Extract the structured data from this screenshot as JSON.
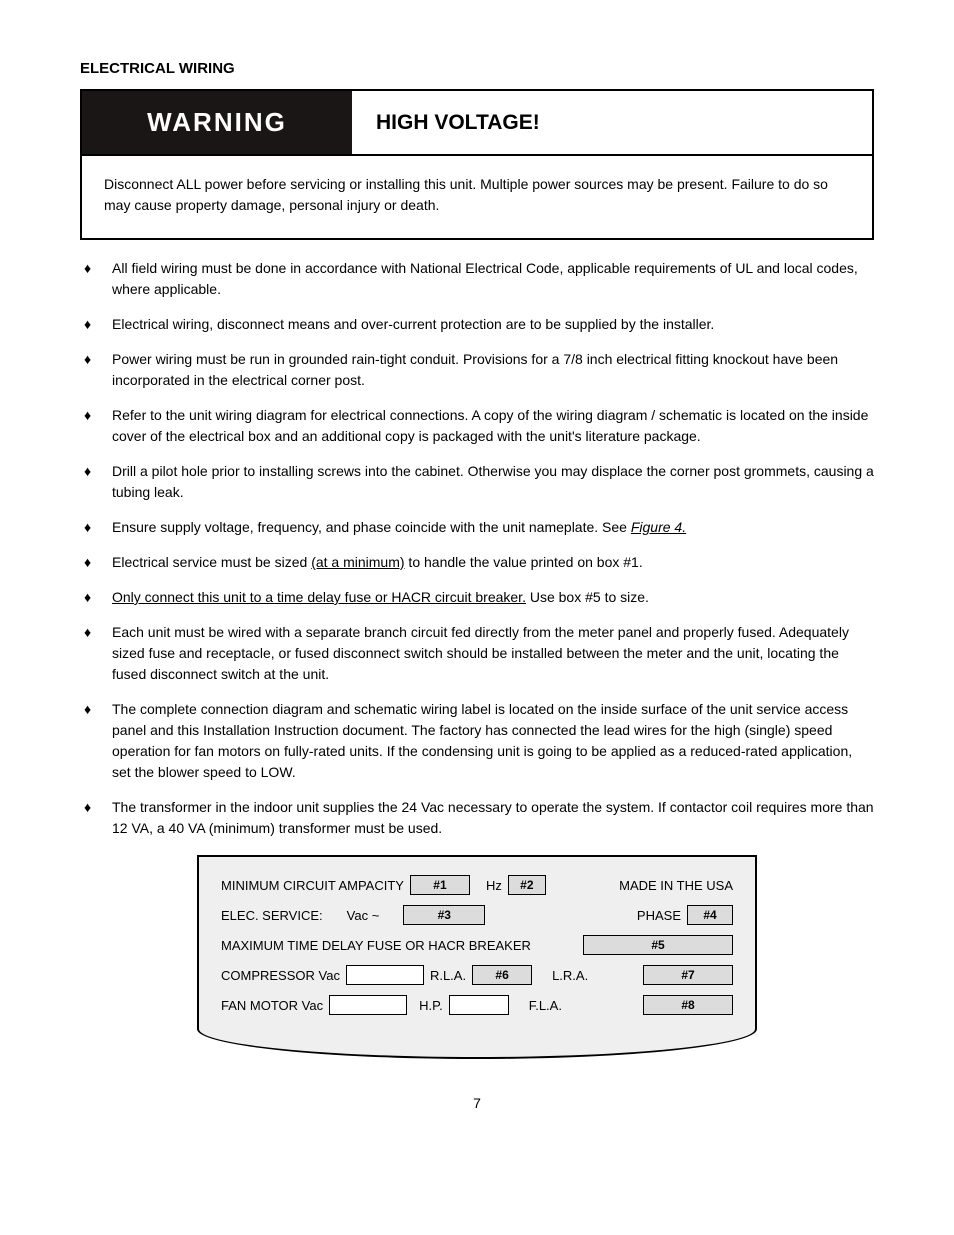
{
  "section_title": "ELECTRICAL WIRING",
  "warning": {
    "label": "WARNING",
    "title": "HIGH VOLTAGE!",
    "body": "Disconnect ALL power before servicing or installing this unit. Multiple power sources may be present. Failure to do so may cause property damage, personal injury or death."
  },
  "bullets": [
    {
      "html": "All field wiring must be done in accordance with National Electrical Code, applicable requirements of UL and local codes, where applicable."
    },
    {
      "html": "Electrical wiring, disconnect means and over-current protection are to be supplied by the installer."
    },
    {
      "html": "Power wiring must be run in grounded rain-tight conduit. Provisions for a 7/8 inch electrical fitting knockout have been incorporated in the electrical corner post."
    },
    {
      "html": "Refer to the unit wiring diagram for electrical connections. A copy of the wiring diagram / schematic is located on the inside cover of the electrical box and an additional copy is packaged with the unit's literature package."
    },
    {
      "html": "Drill a pilot hole prior to installing screws into the cabinet. Otherwise you may displace the corner post grommets, causing a tubing leak."
    },
    {
      "html": "Ensure supply voltage, frequency, and phase coincide with the unit nameplate. See <span class=\"italic underline\">Figure 4.</span>"
    },
    {
      "html": "Electrical service must be sized <span class=\"underline\">(at a minimum)</span> to handle the value printed on box #1."
    },
    {
      "html": "<span class=\"underline\">Only connect this unit to a time delay fuse or HACR circuit breaker.</span> Use box #5 to size."
    },
    {
      "html": "Each unit must be wired with a separate branch circuit fed directly from the meter panel and properly fused. Adequately sized fuse and receptacle, or fused disconnect switch should be installed between the meter and the unit, locating the fused disconnect switch at the unit."
    },
    {
      "html": "The complete connection diagram and schematic wiring label is located on the inside surface of the unit service access panel and this Installation Instruction document. The factory has connected the lead wires for the high (single) speed operation for fan motors on fully-rated units. If the condensing unit is going to be applied as a reduced-rated application, set the blower speed to LOW."
    },
    {
      "html": "The transformer in the indoor unit supplies the 24 Vac necessary to operate the system. If contactor coil requires more than 12 VA, a 40 VA (minimum) transformer must be used."
    }
  ],
  "nameplate": {
    "row1": {
      "label1": "MINIMUM CIRCUIT AMPACITY",
      "field1": "#1",
      "label2": "Hz",
      "field2": "#2",
      "label3": "MADE IN THE USA"
    },
    "row2": {
      "label1": "ELEC. SERVICE:",
      "label2": "Vac ~",
      "field1": "#3",
      "label3": "PHASE",
      "field2": "#4"
    },
    "row3": {
      "label1": "MAXIMUM TIME DELAY FUSE OR HACR BREAKER",
      "field1": "#5"
    },
    "row4": {
      "label1": "COMPRESSOR Vac",
      "field_blank1": "",
      "label2": "R.L.A.",
      "field1": "#6",
      "label3": "L.R.A.",
      "field2": "#7"
    },
    "row5": {
      "label1": "FAN MOTOR Vac",
      "field_blank1": "",
      "label2": "H.P.",
      "field_blank2": "",
      "label3": "F.L.A.",
      "field1": "#8"
    }
  },
  "page_number": "7"
}
